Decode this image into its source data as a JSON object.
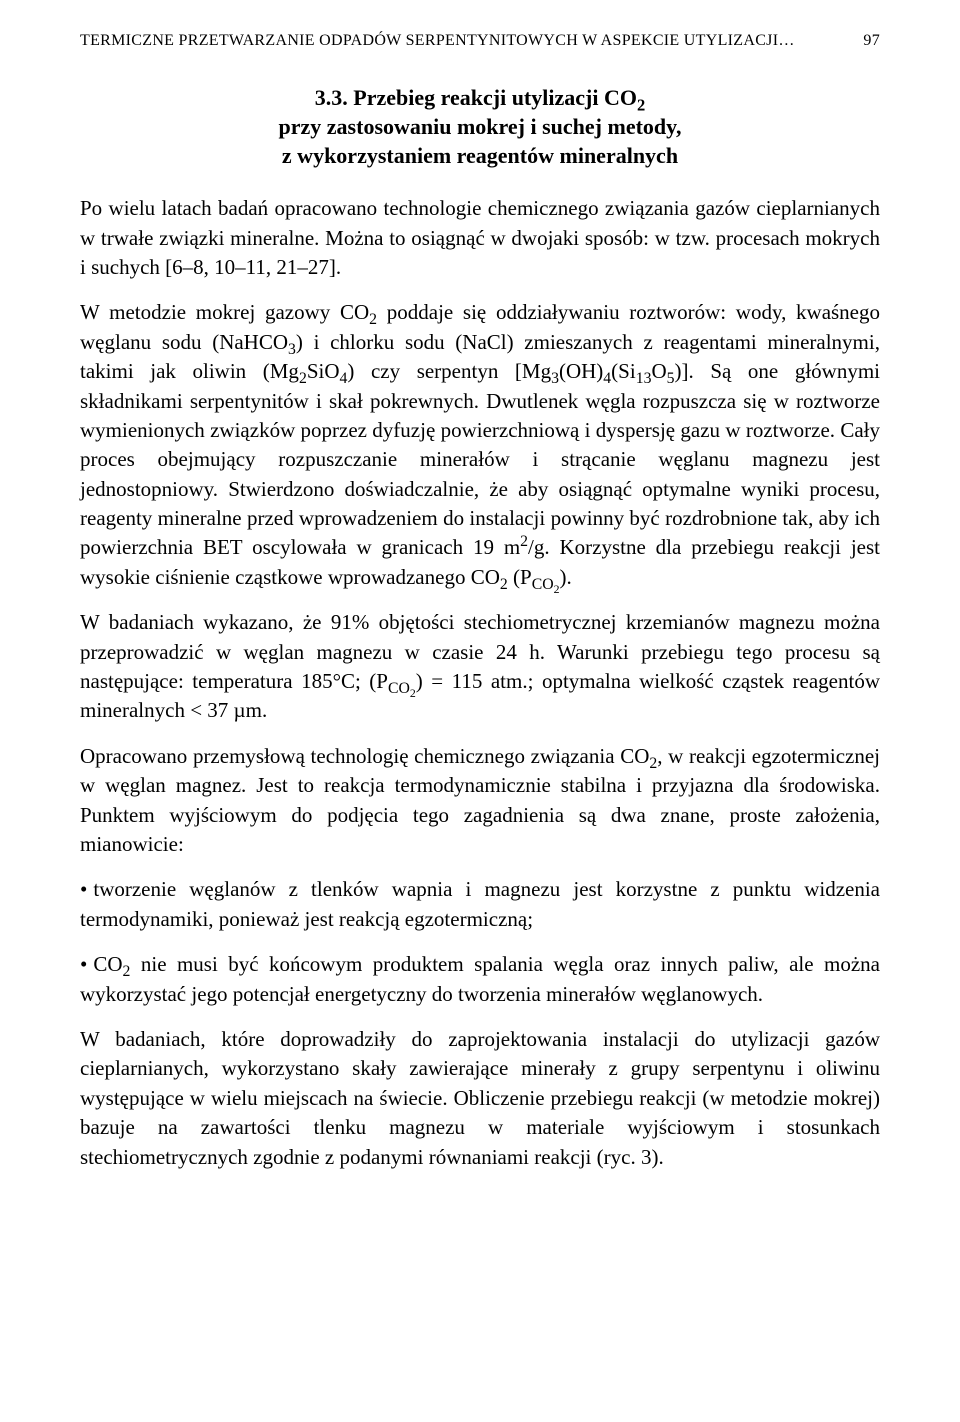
{
  "header": {
    "running_title": "TERMICZNE PRZETWARZANIE ODPADÓW SERPENTYNITOWYCH W ASPEKCIE UTYLIZACJI…",
    "page_number": "97"
  },
  "section": {
    "number": "3.3.",
    "title_line1": "Przebieg reakcji utylizacji CO",
    "title_sub1": "2",
    "title_line2": "przy zastosowaniu mokrej i suchej metody,",
    "title_line3": "z wykorzystaniem reagentów mineralnych"
  },
  "p1": {
    "t1": "Po wielu latach badań opracowano technologie chemicznego związania gazów cieplarnianych w trwałe związki mineralne. Można to osiągnąć w dwojaki sposób: w tzw. procesach mokrych i suchych [6–8, 10–11, 21–27]."
  },
  "p2": {
    "t1": "W metodzie mokrej gazowy CO",
    "s1": "2",
    "t2": " poddaje się oddziaływaniu roztworów: wody, kwaśnego węglanu sodu (NaHCO",
    "s2": "3",
    "t3": ") i chlorku sodu (NaCl) zmieszanych z reagentami mineralnymi, takimi jak oliwin (Mg",
    "s3": "2",
    "t4": "SiO",
    "s4": "4",
    "t5": ") czy serpentyn [Mg",
    "s5": "3",
    "t6": "(OH)",
    "s6": "4",
    "t7": "(Si",
    "s7": "13",
    "t8": "O",
    "s8": "5",
    "t9": ")]. Są one głównymi składnikami serpentynitów i skał pokrewnych. Dwutlenek węgla rozpuszcza się w roztworze wymienionych związków poprzez dyfuzję powierzchniową i dyspersję gazu w roztworze. Cały proces obejmujący rozpuszczanie minerałów i strącanie węglanu magnezu jest jednostopniowy. Stwierdzono doświadczalnie, że aby osiągnąć optymalne wyniki procesu, reagenty mineralne przed wprowadzeniem do instalacji powinny być rozdrobnione tak, aby ich powierzchnia BET oscylowała w granicach 19 m",
    "sup1": "2",
    "t10": "/g. Korzystne dla przebiegu reakcji jest wysokie ciśnienie cząstkowe wprowadzanego CO",
    "s9": "2",
    "t11": " (P",
    "sub_co2": "CO",
    "sub_co2_2": "2",
    "t12": ")."
  },
  "p3": {
    "t1": "W badaniach wykazano, że 91% objętości stechiometrycznej krzemianów magnezu można przeprowadzić w węglan magnezu w czasie 24 h. Warunki przebiegu tego procesu są następujące: temperatura  185°C; (P",
    "sub_co2": "CO",
    "sub_co2_2": "2",
    "t2": ") = 115 atm.; optymalna wielkość cząstek reagentów mineralnych < 37 µm."
  },
  "p4": {
    "t1": "Opracowano przemysłową technologię chemicznego związania CO",
    "s1": "2",
    "t2": ", w reakcji egzotermicznej w węglan magnez. Jest to reakcja termodynamicznie stabilna i przyjazna dla środowiska. Punktem wyjściowym do podjęcia tego zagadnienia są dwa znane, proste założenia, mianowicie:"
  },
  "bullet1": {
    "t1": "tworzenie węglanów z tlenków wapnia i magnezu jest korzystne z punktu widzenia termodynamiki, ponieważ jest reakcją egzotermiczną;"
  },
  "bullet2": {
    "t1": "CO",
    "s1": "2",
    "t2": " nie musi być końcowym produktem spalania węgla oraz innych paliw, ale można wykorzystać jego potencjał energetyczny do tworzenia minerałów węglanowych."
  },
  "p5": {
    "t1": "W badaniach, które doprowadziły do zaprojektowania instalacji do utylizacji gazów cieplarnianych, wykorzystano skały zawierające minerały z grupy serpentynu i oliwinu występujące w wielu miejscach na świecie. Obliczenie przebiegu reakcji (w metodzie mokrej) bazuje na zawartości tlenku magnezu w materiale wyjściowym i stosunkach stechiometrycznych zgodnie z podanymi równaniami reakcji (ryc. 3)."
  }
}
